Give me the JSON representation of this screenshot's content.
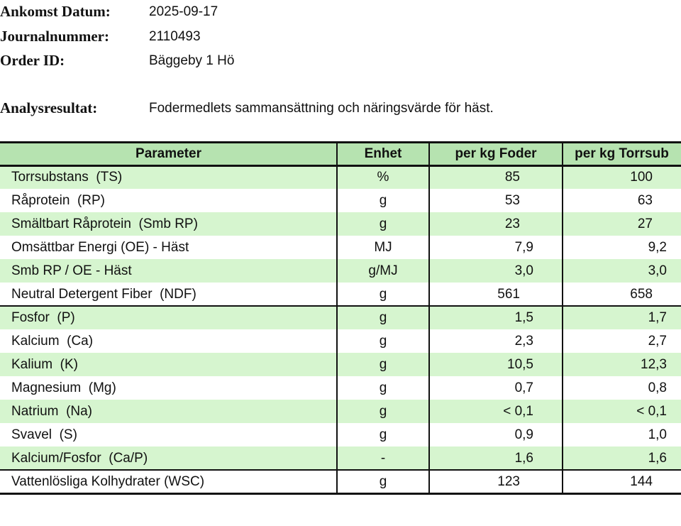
{
  "header": {
    "fields": [
      {
        "label": "Ankomst Datum:",
        "value": "2025-09-17"
      },
      {
        "label": "Journalnummer:",
        "value": "2110493"
      },
      {
        "label": "Order ID:",
        "value": "Bäggeby 1 Hö"
      }
    ],
    "analysis": {
      "label": "Analysresultat:",
      "value": "Fodermedlets sammansättning och näringsvärde för häst."
    }
  },
  "table": {
    "columns": [
      "Parameter",
      "Enhet",
      "per kg Foder",
      "per kg Torrsub"
    ],
    "rows": [
      [
        "Torrsubstans  (TS)",
        "%",
        "85",
        "100"
      ],
      [
        "Råprotein  (RP)",
        "g",
        "53",
        "63"
      ],
      [
        "Smältbart Råprotein  (Smb RP)",
        "g",
        "23",
        "27"
      ],
      [
        "Omsättbar Energi (OE) - Häst",
        "MJ",
        "7,9",
        "9,2"
      ],
      [
        "Smb RP / OE - Häst",
        "g/MJ",
        "3,0",
        "3,0"
      ],
      [
        "Neutral Detergent Fiber  (NDF)",
        "g",
        "561",
        "658"
      ],
      [
        "Fosfor  (P)",
        "g",
        "1,5",
        "1,7"
      ],
      [
        "Kalcium  (Ca)",
        "g",
        "2,3",
        "2,7"
      ],
      [
        "Kalium  (K)",
        "g",
        "10,5",
        "12,3"
      ],
      [
        "Magnesium  (Mg)",
        "g",
        "0,7",
        "0,8"
      ],
      [
        "Natrium  (Na)",
        "g",
        "< 0,1",
        "< 0,1"
      ],
      [
        "Svavel  (S)",
        "g",
        "0,9",
        "1,0"
      ],
      [
        "Kalcium/Fosfor  (Ca/P)",
        "-",
        "1,6",
        "1,6"
      ],
      [
        "Vattenlösliga Kolhydrater (WSC)",
        "g",
        "123",
        "144"
      ]
    ]
  }
}
